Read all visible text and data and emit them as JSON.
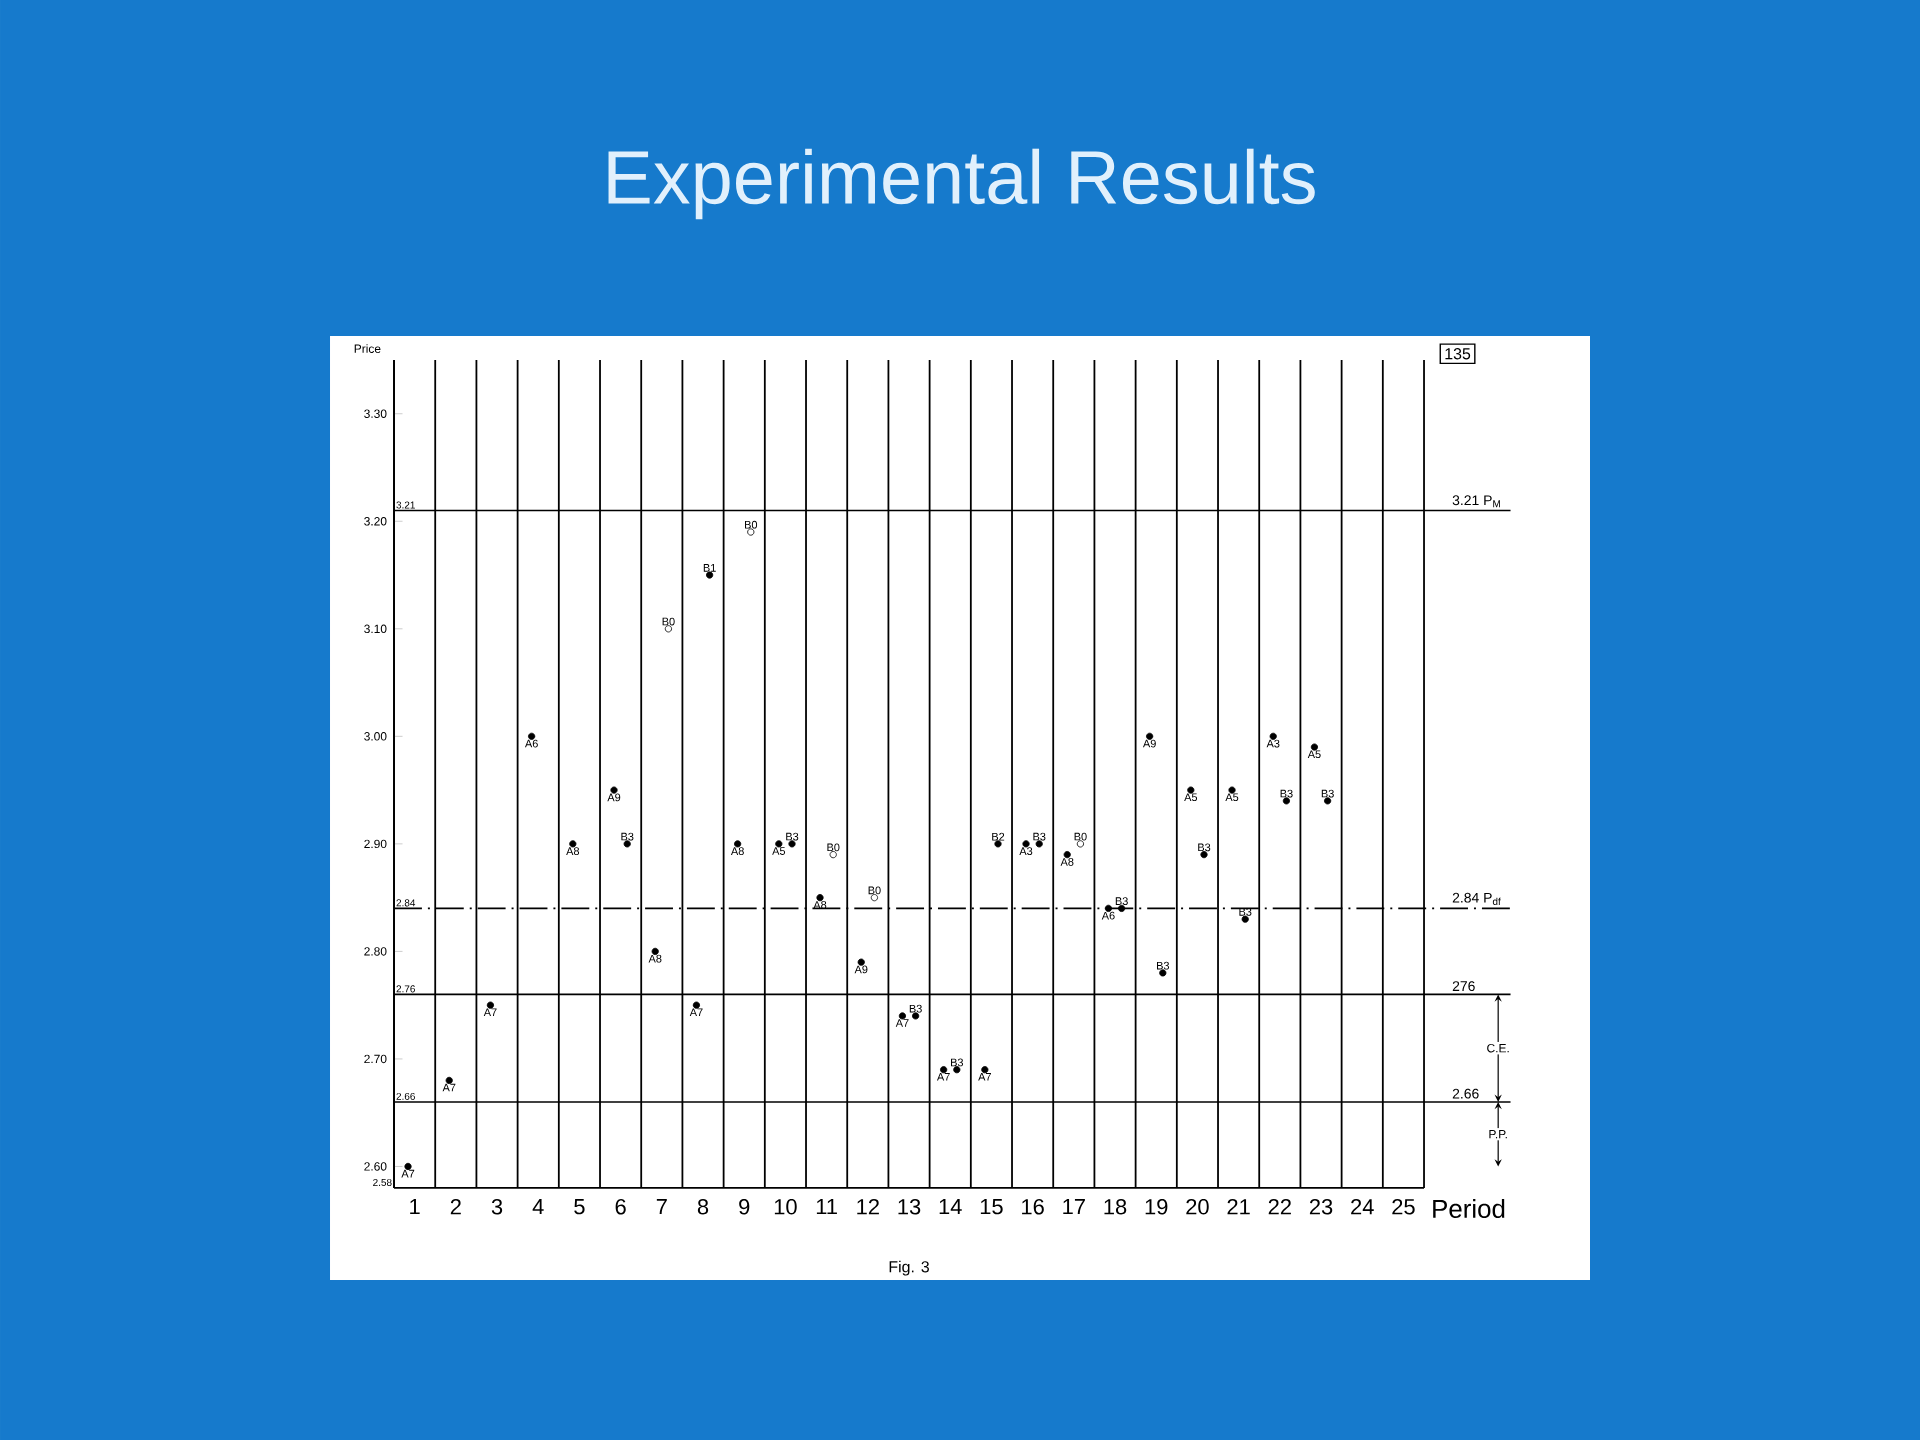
{
  "chart_data": {
    "type": "scatter",
    "title": "Experimental Results",
    "xlabel": "Period",
    "ylabel": "Price",
    "categories": [
      "1",
      "2",
      "3",
      "4",
      "5",
      "6",
      "7",
      "8",
      "9",
      "10",
      "11",
      "12",
      "13",
      "14",
      "15",
      "16",
      "17",
      "18",
      "19",
      "20",
      "21",
      "22",
      "23",
      "24",
      "25"
    ],
    "ylim": [
      2.58,
      3.35
    ],
    "yticks": [
      {
        "value": 2.6,
        "label": "2.60"
      },
      {
        "value": 2.7,
        "label": "2.70"
      },
      {
        "value": 2.8,
        "label": "2.80"
      },
      {
        "value": 2.9,
        "label": "2.90"
      },
      {
        "value": 3.0,
        "label": "3.00"
      },
      {
        "value": 3.1,
        "label": "3.10"
      },
      {
        "value": 3.2,
        "label": "3.20"
      },
      {
        "value": 3.3,
        "label": "3.30"
      }
    ],
    "grid": "x",
    "series": [
      {
        "color": "#000000",
        "x": [
          "1",
          "2",
          "3",
          "4",
          "5",
          "6",
          "7",
          "8",
          "9",
          "10",
          "11",
          "12",
          "13",
          "14",
          "15",
          "16",
          "17",
          "18",
          "19",
          "20",
          "21",
          "22",
          "23"
        ],
        "values": [
          2.6,
          2.68,
          2.75,
          3.0,
          2.9,
          2.95,
          2.8,
          2.75,
          2.9,
          2.9,
          2.85,
          2.79,
          2.74,
          2.69,
          2.69,
          2.9,
          2.89,
          2.84,
          3.0,
          2.95,
          2.95,
          3.0,
          2.99
        ],
        "value_labels": [
          "A7",
          "A7",
          "A7",
          "A6",
          "A8",
          "A9",
          "A8",
          "A7",
          "A8",
          "A5",
          "A8",
          "A9",
          "A7",
          "A7",
          "A7",
          "A3",
          "A8",
          "A6",
          "A9",
          "A5",
          "A5",
          "A3",
          "A5"
        ]
      },
      {
        "color": "#000000",
        "x": [
          "6",
          "8",
          "10",
          "13",
          "14",
          "15",
          "16",
          "18",
          "19",
          "20",
          "21",
          "22",
          "23"
        ],
        "values": [
          2.9,
          3.15,
          2.9,
          2.74,
          2.69,
          2.9,
          2.9,
          2.84,
          2.78,
          2.89,
          2.83,
          2.94,
          2.94
        ],
        "value_labels": [
          "B3",
          "B1",
          "B3",
          "B3",
          "B3",
          "B2",
          "B3",
          "B3",
          "B3",
          "B3",
          "B3",
          "B3",
          "B3"
        ]
      },
      {
        "color": "#ffffff",
        "x": [
          "7",
          "9",
          "11",
          "12",
          "17"
        ],
        "values": [
          3.1,
          3.19,
          2.89,
          2.85,
          2.9
        ],
        "value_labels": [
          "B0",
          "B0",
          "B0",
          "B0",
          "B0"
        ]
      }
    ],
    "ref_lines": [
      {
        "axis": "y",
        "value": 3.21,
        "label": "3.21 P$_{M}$"
      },
      {
        "axis": "y",
        "value": 2.84,
        "label": "2.84 P$_{df}$",
        "line_style": "dashed"
      },
      {
        "axis": "y",
        "value": 2.76,
        "label": "276"
      },
      {
        "axis": "y",
        "value": 2.66,
        "label": "2.66"
      }
    ],
    "annotations": [
      "135",
      "Fig. 3",
      "C.E.",
      "P.P.",
      "2.58",
      {
        "text": "3.21",
        "x": "1",
        "y": 3.21
      },
      {
        "text": "2.84",
        "x": "1",
        "y": 2.84
      },
      {
        "text": "2.76",
        "x": "1",
        "y": 2.76
      },
      {
        "text": "2.66",
        "x": "1",
        "y": 2.66
      }
    ]
  }
}
